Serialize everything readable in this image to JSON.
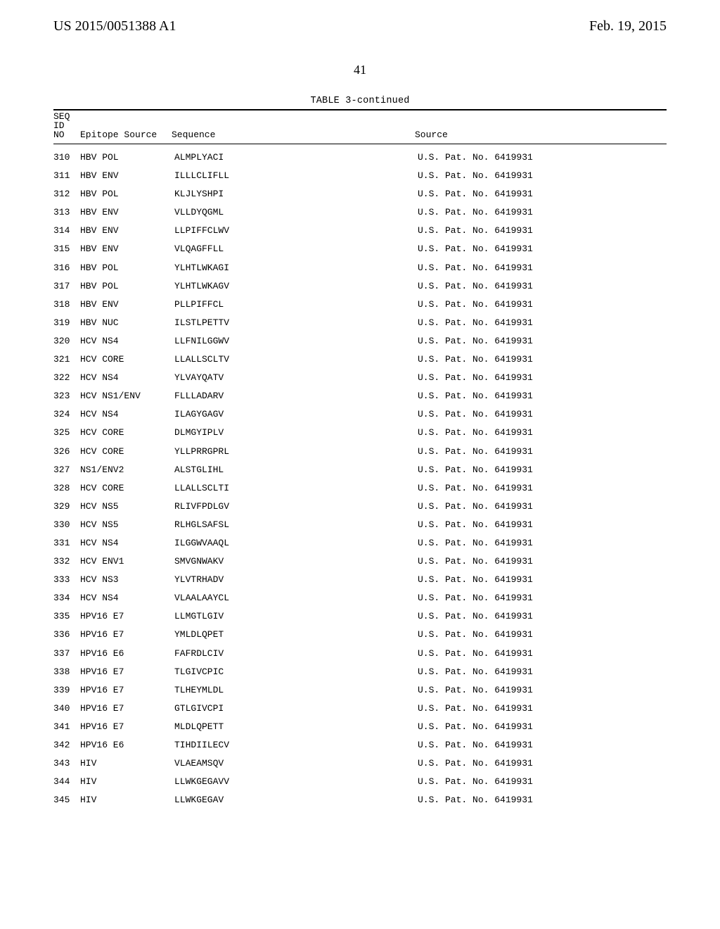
{
  "pub_number": "US 2015/0051388 A1",
  "pub_date": "Feb. 19, 2015",
  "page_number": "41",
  "table_caption": "TABLE 3-continued",
  "header": {
    "seq": "SEQ",
    "id": "ID",
    "no": "NO",
    "epitope_source": "Epitope Source",
    "sequence": "Sequence",
    "source": "Source"
  },
  "rows": [
    {
      "no": "310",
      "epi": "HBV POL",
      "seq": "ALMPLYACI",
      "src": "U.S. Pat. No. 6419931"
    },
    {
      "no": "311",
      "epi": "HBV ENV",
      "seq": "ILLLCLIFLL",
      "src": "U.S. Pat. No. 6419931"
    },
    {
      "no": "312",
      "epi": "HBV POL",
      "seq": "KLJLYSHPI",
      "src": "U.S. Pat. No. 6419931"
    },
    {
      "no": "313",
      "epi": "HBV ENV",
      "seq": "VLLDYQGML",
      "src": "U.S. Pat. No. 6419931"
    },
    {
      "no": "314",
      "epi": "HBV ENV",
      "seq": "LLPIFFCLWV",
      "src": "U.S. Pat. No. 6419931"
    },
    {
      "no": "315",
      "epi": "HBV ENV",
      "seq": "VLQAGFFLL",
      "src": "U.S. Pat. No. 6419931"
    },
    {
      "no": "316",
      "epi": "HBV POL",
      "seq": "YLHTLWKAGI",
      "src": "U.S. Pat. No. 6419931"
    },
    {
      "no": "317",
      "epi": "HBV POL",
      "seq": "YLHTLWKAGV",
      "src": "U.S. Pat. No. 6419931"
    },
    {
      "no": "318",
      "epi": "HBV ENV",
      "seq": "PLLPIFFCL",
      "src": "U.S. Pat. No. 6419931"
    },
    {
      "no": "319",
      "epi": "HBV NUC",
      "seq": "ILSTLPETTV",
      "src": "U.S. Pat. No. 6419931"
    },
    {
      "no": "320",
      "epi": "HCV NS4",
      "seq": "LLFNILGGWV",
      "src": "U.S. Pat. No. 6419931"
    },
    {
      "no": "321",
      "epi": "HCV CORE",
      "seq": "LLALLSCLTV",
      "src": "U.S. Pat. No. 6419931"
    },
    {
      "no": "322",
      "epi": "HCV NS4",
      "seq": "YLVAYQATV",
      "src": "U.S. Pat. No. 6419931"
    },
    {
      "no": "323",
      "epi": "HCV NS1/ENV",
      "seq": "FLLLADARV",
      "src": "U.S. Pat. No. 6419931"
    },
    {
      "no": "324",
      "epi": "HCV NS4",
      "seq": "ILAGYGAGV",
      "src": "U.S. Pat. No. 6419931"
    },
    {
      "no": "325",
      "epi": "HCV CORE",
      "seq": "DLMGYIPLV",
      "src": "U.S. Pat. No. 6419931"
    },
    {
      "no": "326",
      "epi": "HCV CORE",
      "seq": "YLLPRRGPRL",
      "src": "U.S. Pat. No. 6419931"
    },
    {
      "no": "327",
      "epi": "NS1/ENV2",
      "seq": "ALSTGLIHL",
      "src": "U.S. Pat. No. 6419931"
    },
    {
      "no": "328",
      "epi": "HCV CORE",
      "seq": "LLALLSCLTI",
      "src": "U.S. Pat. No. 6419931"
    },
    {
      "no": "329",
      "epi": "HCV NS5",
      "seq": "RLIVFPDLGV",
      "src": "U.S. Pat. No. 6419931"
    },
    {
      "no": "330",
      "epi": "HCV NS5",
      "seq": "RLHGLSAFSL",
      "src": "U.S. Pat. No. 6419931"
    },
    {
      "no": "331",
      "epi": "HCV NS4",
      "seq": "ILGGWVAAQL",
      "src": "U.S. Pat. No. 6419931"
    },
    {
      "no": "332",
      "epi": "HCV ENV1",
      "seq": "SMVGNWAKV",
      "src": "U.S. Pat. No. 6419931"
    },
    {
      "no": "333",
      "epi": "HCV NS3",
      "seq": "YLVTRHADV",
      "src": "U.S. Pat. No. 6419931"
    },
    {
      "no": "334",
      "epi": "HCV NS4",
      "seq": "VLAALAAYCL",
      "src": "U.S. Pat. No. 6419931"
    },
    {
      "no": "335",
      "epi": "HPV16 E7",
      "seq": "LLMGTLGIV",
      "src": "U.S. Pat. No. 6419931"
    },
    {
      "no": "336",
      "epi": "HPV16 E7",
      "seq": "YMLDLQPET",
      "src": "U.S. Pat. No. 6419931"
    },
    {
      "no": "337",
      "epi": "HPV16 E6",
      "seq": "FAFRDLCIV",
      "src": "U.S. Pat. No. 6419931"
    },
    {
      "no": "338",
      "epi": "HPV16 E7",
      "seq": "TLGIVCPIC",
      "src": "U.S. Pat. No. 6419931"
    },
    {
      "no": "339",
      "epi": "HPV16 E7",
      "seq": "TLHEYMLDL",
      "src": "U.S. Pat. No. 6419931"
    },
    {
      "no": "340",
      "epi": "HPV16 E7",
      "seq": "GTLGIVCPI",
      "src": "U.S. Pat. No. 6419931"
    },
    {
      "no": "341",
      "epi": "HPV16 E7",
      "seq": "MLDLQPETT",
      "src": "U.S. Pat. No. 6419931"
    },
    {
      "no": "342",
      "epi": "HPV16 E6",
      "seq": "TIHDIILECV",
      "src": "U.S. Pat. No. 6419931"
    },
    {
      "no": "343",
      "epi": "HIV",
      "seq": "VLAEAMSQV",
      "src": "U.S. Pat. No. 6419931"
    },
    {
      "no": "344",
      "epi": "HIV",
      "seq": "LLWKGEGAVV",
      "src": "U.S. Pat. No. 6419931"
    },
    {
      "no": "345",
      "epi": "HIV",
      "seq": "LLWKGEGAV",
      "src": "U.S. Pat. No. 6419931"
    }
  ]
}
